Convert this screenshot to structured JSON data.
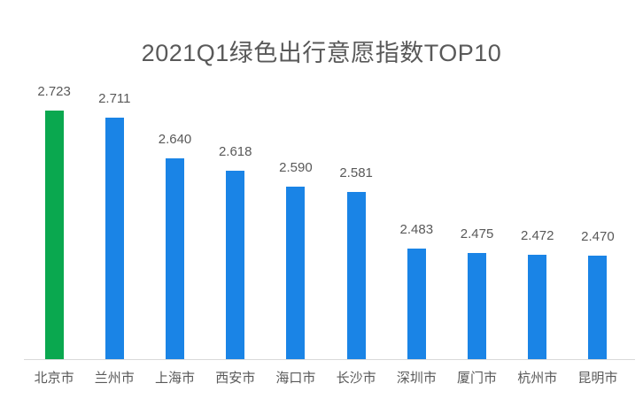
{
  "title": "2021Q1绿色出行意愿指数TOP10",
  "chart_data": {
    "type": "bar",
    "title": "2021Q1绿色出行意愿指数TOP10",
    "categories": [
      "北京市",
      "兰州市",
      "上海市",
      "西安市",
      "海口市",
      "长沙市",
      "深圳市",
      "厦门市",
      "杭州市",
      "昆明市"
    ],
    "values": [
      2.723,
      2.711,
      2.64,
      2.618,
      2.59,
      2.581,
      2.483,
      2.475,
      2.472,
      2.47
    ],
    "value_labels": [
      "2.723",
      "2.711",
      "2.640",
      "2.618",
      "2.590",
      "2.581",
      "2.483",
      "2.475",
      "2.472",
      "2.470"
    ],
    "xlabel": "",
    "ylabel": "",
    "ylim": [
      2.29,
      2.723
    ],
    "grid": false,
    "legend": false,
    "highlight_index": 0,
    "colors": {
      "highlight_bar": "#0aa84f",
      "default_bar": "#1a84e6",
      "title_text": "#595959",
      "label_text": "#595959",
      "axis_line": "#d9d9d9",
      "background": "#ffffff"
    }
  }
}
